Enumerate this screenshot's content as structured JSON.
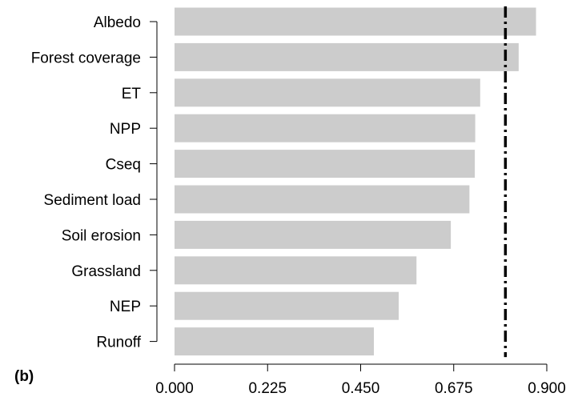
{
  "chart_data": {
    "type": "bar",
    "orientation": "horizontal",
    "panel_label": "(b)",
    "categories": [
      "Albedo",
      "Forest coverage",
      "ET",
      "NPP",
      "Cseq",
      "Sediment load",
      "Soil erosion",
      "Grassland",
      "NEP",
      "Runoff"
    ],
    "values": [
      0.874,
      0.832,
      0.739,
      0.727,
      0.726,
      0.713,
      0.668,
      0.585,
      0.542,
      0.482
    ],
    "xlim": [
      0.0,
      0.9
    ],
    "xticks": [
      "0.000",
      "0.225",
      "0.450",
      "0.675",
      "0.900"
    ],
    "xtick_values": [
      0.0,
      0.225,
      0.45,
      0.675,
      0.9
    ],
    "reference_line": {
      "value": 0.8,
      "style": "dash-dot"
    },
    "title": "",
    "xlabel": "",
    "ylabel": "",
    "bar_color": "#cccccc",
    "line_color": "#000000",
    "grid": false
  }
}
